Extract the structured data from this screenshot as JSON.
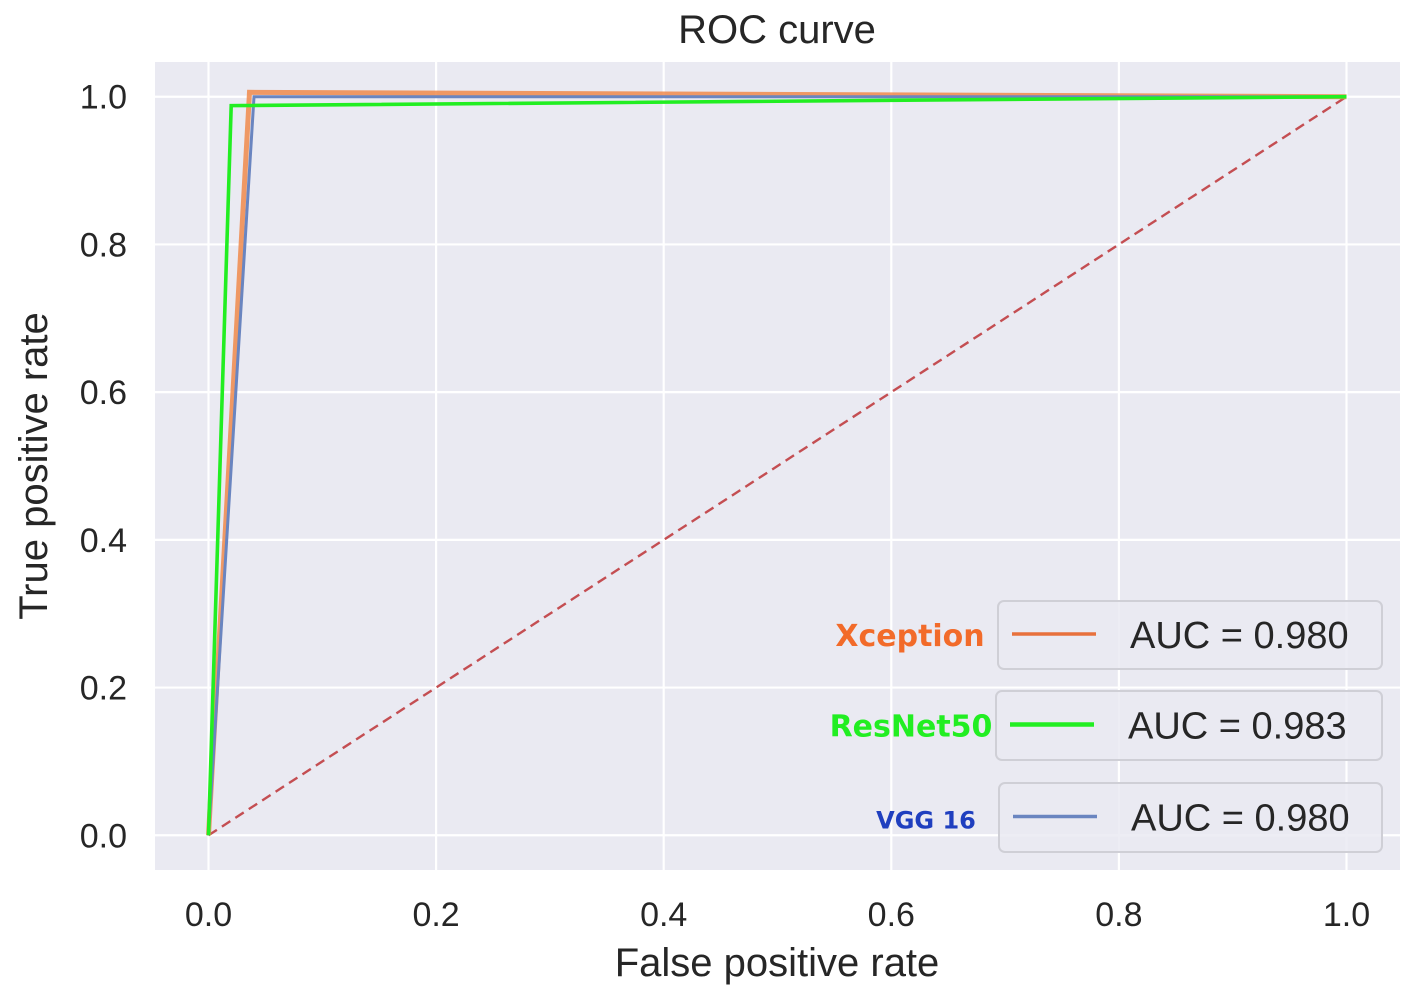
{
  "chart_data": {
    "type": "line",
    "title": "ROC curve",
    "xlabel": "False positive rate",
    "ylabel": "True positive rate",
    "xlim": [
      -0.047,
      1.047
    ],
    "ylim": [
      -0.047,
      1.047
    ],
    "xticks": [
      0.0,
      0.2,
      0.4,
      0.6,
      0.8,
      1.0
    ],
    "xtick_labels": [
      "0.0",
      "0.2",
      "0.4",
      "0.6",
      "0.8",
      "1.0"
    ],
    "yticks": [
      0.0,
      0.2,
      0.4,
      0.6,
      0.8,
      1.0
    ],
    "ytick_labels": [
      "0.0",
      "0.2",
      "0.4",
      "0.6",
      "0.8",
      "1.0"
    ],
    "grid": true,
    "background": "#eaeaf2",
    "series": [
      {
        "name": "Xception",
        "legend_label": "AUC = 0.980",
        "color": "#f08a4b",
        "x": [
          0.0,
          0.036,
          1.0
        ],
        "y": [
          0.0,
          1.006,
          1.0
        ]
      },
      {
        "name": "ResNet50",
        "legend_label": "AUC = 0.983",
        "color": "#22ee22",
        "x": [
          0.0,
          0.02,
          1.0
        ],
        "y": [
          0.0,
          0.988,
          1.0
        ]
      },
      {
        "name": "VGG 16",
        "legend_label": "AUC = 0.980",
        "color": "#6a85c0",
        "x": [
          0.0,
          0.04,
          1.0
        ],
        "y": [
          0.0,
          1.0,
          1.0
        ]
      },
      {
        "name": "chance",
        "color": "#c44e52",
        "dashed": true,
        "x": [
          0.0,
          1.0
        ],
        "y": [
          0.0,
          1.0
        ]
      }
    ],
    "legend": {
      "placement": "bottom-right",
      "entries": [
        {
          "model": "Xception",
          "model_color": "#f26b2a",
          "line_color": "#e8713c",
          "text": "AUC = 0.980"
        },
        {
          "model": "ResNet50",
          "model_color": "#22ee22",
          "line_color": "#22ee22",
          "text": "AUC = 0.983"
        },
        {
          "model": "VGG 16",
          "model_color": "#1f3fbf",
          "line_color": "#6a85c0",
          "text": "AUC = 0.980"
        }
      ]
    }
  }
}
